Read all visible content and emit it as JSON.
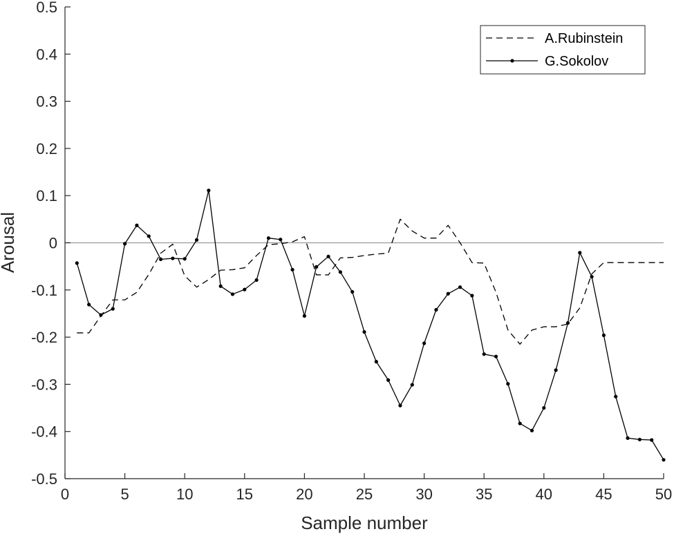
{
  "chart_data": {
    "type": "line",
    "xlabel": "Sample number",
    "ylabel": "Arousal",
    "xlim": [
      0,
      50
    ],
    "ylim": [
      -0.5,
      0.5
    ],
    "xticks": [
      0,
      5,
      10,
      15,
      20,
      25,
      30,
      35,
      40,
      45,
      50
    ],
    "yticks": [
      -0.5,
      -0.4,
      -0.3,
      -0.2,
      -0.1,
      0,
      0.1,
      0.2,
      0.3,
      0.4,
      0.5
    ],
    "xtick_labels": [
      "0",
      "5",
      "10",
      "15",
      "20",
      "25",
      "30",
      "35",
      "40",
      "45",
      "50"
    ],
    "ytick_labels": [
      "-0.5",
      "-0.4",
      "-0.3",
      "-0.2",
      "-0.1",
      "0",
      "0.1",
      "0.2",
      "0.3",
      "0.4",
      "0.5"
    ],
    "zero_line": true,
    "grid": false,
    "legend_position": "top-right",
    "x": [
      1,
      2,
      3,
      4,
      5,
      6,
      7,
      8,
      9,
      10,
      11,
      12,
      13,
      14,
      15,
      16,
      17,
      18,
      19,
      20,
      21,
      22,
      23,
      24,
      25,
      26,
      27,
      28,
      29,
      30,
      31,
      32,
      33,
      34,
      35,
      36,
      37,
      38,
      39,
      40,
      41,
      42,
      43,
      44,
      45,
      46,
      47,
      48,
      49,
      50
    ],
    "series": [
      {
        "name": "A.Rubinstein",
        "style": "dashed",
        "color": "#000000",
        "values": [
          -0.191,
          -0.191,
          -0.155,
          -0.121,
          -0.121,
          -0.105,
          -0.067,
          -0.022,
          -0.003,
          -0.07,
          -0.094,
          -0.078,
          -0.058,
          -0.057,
          -0.053,
          -0.027,
          -0.004,
          -0.002,
          0.002,
          0.013,
          -0.068,
          -0.068,
          -0.032,
          -0.031,
          -0.027,
          -0.024,
          -0.022,
          0.05,
          0.025,
          0.01,
          0.01,
          0.037,
          0.0,
          -0.042,
          -0.043,
          -0.105,
          -0.185,
          -0.215,
          -0.185,
          -0.178,
          -0.178,
          -0.172,
          -0.138,
          -0.066,
          -0.042,
          -0.042,
          -0.042,
          -0.042,
          -0.042,
          -0.042
        ]
      },
      {
        "name": "G.Sokolov",
        "style": "solid-marker",
        "color": "#000000",
        "values": [
          -0.043,
          -0.131,
          -0.153,
          -0.14,
          -0.002,
          0.037,
          0.014,
          -0.035,
          -0.033,
          -0.034,
          0.006,
          0.111,
          -0.092,
          -0.109,
          -0.099,
          -0.079,
          0.01,
          0.007,
          -0.057,
          -0.155,
          -0.051,
          -0.029,
          -0.062,
          -0.104,
          -0.189,
          -0.252,
          -0.291,
          -0.345,
          -0.301,
          -0.213,
          -0.142,
          -0.108,
          -0.094,
          -0.112,
          -0.236,
          -0.241,
          -0.299,
          -0.383,
          -0.398,
          -0.35,
          -0.27,
          -0.17,
          -0.021,
          -0.072,
          -0.196,
          -0.326,
          -0.414,
          -0.417,
          -0.418,
          -0.46
        ]
      }
    ]
  }
}
